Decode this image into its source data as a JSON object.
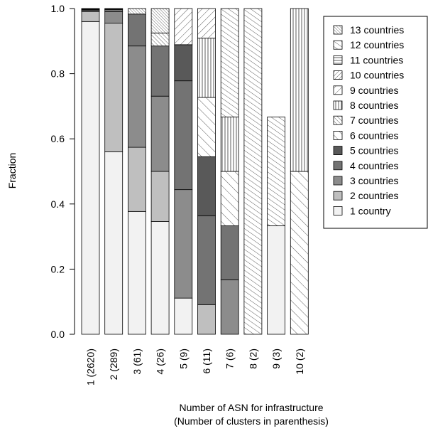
{
  "chart_data": {
    "type": "bar",
    "stacked": true,
    "categories": [
      "1 (2620)",
      "2 (289)",
      "3 (61)",
      "4 (26)",
      "5 (9)",
      "6 (11)",
      "7 (6)",
      "8 (2)",
      "9 (3)",
      "10 (2)"
    ],
    "xlabel": [
      "Number of ASN for infrastructure",
      "(Number of clusters in parenthesis)"
    ],
    "ylabel": "Fraction",
    "ylim": [
      0,
      1
    ],
    "yticks": [
      "0.0",
      "0.2",
      "0.4",
      "0.6",
      "0.8",
      "1.0"
    ],
    "legend_position": "top-right",
    "series": [
      {
        "name": "1 country",
        "fill": "#f2f2f2",
        "pattern": "solid",
        "values": [
          0.96,
          0.56,
          0.377,
          0.346,
          0.111,
          0.0,
          0.0,
          0.0,
          0.333,
          0.0
        ]
      },
      {
        "name": "2 countries",
        "fill": "#bfbfbf",
        "pattern": "solid",
        "values": [
          0.03,
          0.395,
          0.197,
          0.154,
          0.0,
          0.091,
          0.0,
          0.0,
          0.0,
          0.0
        ]
      },
      {
        "name": "3 countries",
        "fill": "#8c8c8c",
        "pattern": "solid",
        "values": [
          0.005,
          0.035,
          0.311,
          0.231,
          0.333,
          0.0,
          0.167,
          0.0,
          0.0,
          0.0
        ]
      },
      {
        "name": "4 countries",
        "fill": "#737373",
        "pattern": "solid",
        "values": [
          0.002,
          0.007,
          0.098,
          0.154,
          0.334,
          0.273,
          0.166,
          0.0,
          0.0,
          0.0
        ]
      },
      {
        "name": "5 countries",
        "fill": "#595959",
        "pattern": "solid",
        "values": [
          0.001,
          0.0,
          0.0,
          0.0,
          0.111,
          0.181,
          0.0,
          0.0,
          0.0,
          0.0
        ]
      },
      {
        "name": "6 countries",
        "fill": "#ffffff",
        "pattern": "diag-wide",
        "values": [
          0.0,
          0.0,
          0.0,
          0.0,
          0.0,
          0.182,
          0.167,
          0.0,
          0.0,
          0.5
        ]
      },
      {
        "name": "7 countries",
        "fill": "#ffffff",
        "pattern": "diag-dense",
        "values": [
          0.0,
          0.0,
          0.0,
          0.04,
          0.0,
          0.0,
          0.0,
          0.0,
          0.0,
          0.0
        ]
      },
      {
        "name": "8 countries",
        "fill": "#ffffff",
        "pattern": "vertical",
        "values": [
          0.0,
          0.0,
          0.0,
          0.0,
          0.0,
          0.182,
          0.167,
          0.0,
          0.0,
          0.5
        ]
      },
      {
        "name": "9 countries",
        "fill": "#ffffff",
        "pattern": "back-wide",
        "values": [
          0.0,
          0.0,
          0.0,
          0.0,
          0.111,
          0.091,
          0.0,
          0.0,
          0.0,
          0.0
        ]
      },
      {
        "name": "10 countries",
        "fill": "#ffffff",
        "pattern": "back-dense",
        "values": [
          0.0,
          0.0,
          0.0,
          0.0,
          0.0,
          0.0,
          0.0,
          0.0,
          0.0,
          0.0
        ]
      },
      {
        "name": "11 countries",
        "fill": "#ffffff",
        "pattern": "horizontal",
        "values": [
          0.0,
          0.0,
          0.0,
          0.0,
          0.0,
          0.0,
          0.0,
          0.0,
          0.0,
          0.0
        ]
      },
      {
        "name": "12 countries",
        "fill": "#ffffff",
        "pattern": "diag-med",
        "values": [
          0.001,
          0.002,
          0.0,
          0.0,
          0.0,
          0.0,
          0.333,
          1.0,
          0.334,
          0.0
        ]
      },
      {
        "name": "13 countries",
        "fill": "#ffffff",
        "pattern": "diag-tight",
        "values": [
          0.001,
          0.001,
          0.017,
          0.075,
          0.0,
          0.0,
          0.0,
          0.0,
          0.0,
          0.0
        ]
      }
    ]
  }
}
